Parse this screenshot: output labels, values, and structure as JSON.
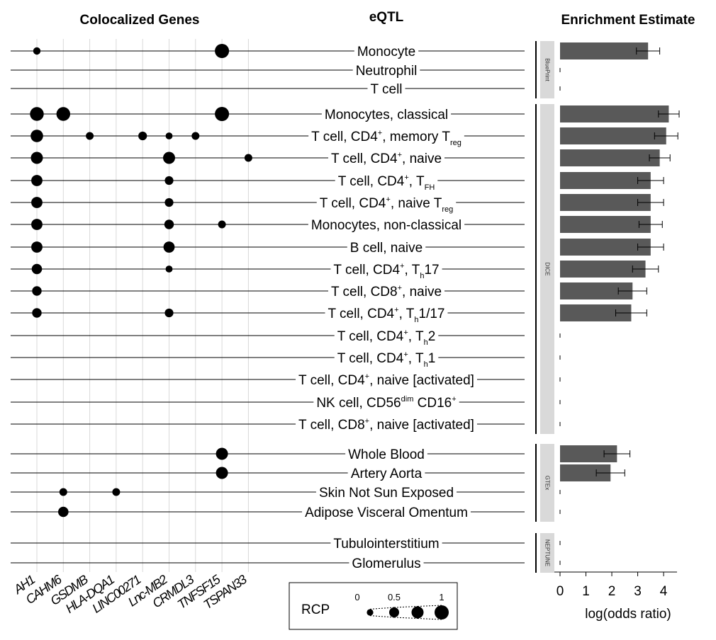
{
  "headers": {
    "genes": "Colocalized Genes",
    "eqtl": "eQTL",
    "enrichment": "Enrichment Estimate"
  },
  "genes": [
    "AH1",
    "CAHM6",
    "GSDMB",
    "HLA-DQA1",
    "LINC00271",
    "Lnc-MB2",
    "CRMDL3",
    "TNFSF15",
    "TSPAN33"
  ],
  "rows": [
    {
      "label": [
        [
          "Monocyte",
          ""
        ]
      ]
    },
    {
      "label": [
        [
          "Neutrophil",
          ""
        ]
      ]
    },
    {
      "label": [
        [
          "T cell",
          ""
        ]
      ]
    },
    {
      "label": [
        [
          "Monocytes, classical",
          ""
        ]
      ]
    },
    {
      "label": [
        [
          "T cell, CD4",
          ""
        ],
        [
          "+",
          "sup"
        ],
        [
          ", memory T",
          ""
        ],
        [
          "reg",
          "sub"
        ]
      ]
    },
    {
      "label": [
        [
          "T cell, CD4",
          ""
        ],
        [
          "+",
          "sup"
        ],
        [
          ", naive",
          ""
        ]
      ]
    },
    {
      "label": [
        [
          "T cell, CD4",
          ""
        ],
        [
          "+",
          "sup"
        ],
        [
          ", T",
          ""
        ],
        [
          "FH",
          "sub"
        ]
      ]
    },
    {
      "label": [
        [
          "T cell, CD4",
          ""
        ],
        [
          "+",
          "sup"
        ],
        [
          ", naive T",
          ""
        ],
        [
          "reg",
          "sub"
        ]
      ]
    },
    {
      "label": [
        [
          "Monocytes, non-classical",
          ""
        ]
      ]
    },
    {
      "label": [
        [
          "B cell, naive",
          ""
        ]
      ]
    },
    {
      "label": [
        [
          "T cell, CD4",
          ""
        ],
        [
          "+",
          "sup"
        ],
        [
          ", T",
          ""
        ],
        [
          "h",
          "sub"
        ],
        [
          "17",
          ""
        ]
      ]
    },
    {
      "label": [
        [
          "T cell, CD8",
          ""
        ],
        [
          "+",
          "sup"
        ],
        [
          ", naive",
          ""
        ]
      ]
    },
    {
      "label": [
        [
          "T cell, CD4",
          ""
        ],
        [
          "+",
          "sup"
        ],
        [
          ", T",
          ""
        ],
        [
          "h",
          "sub"
        ],
        [
          "1/17",
          ""
        ]
      ]
    },
    {
      "label": [
        [
          "T cell, CD4",
          ""
        ],
        [
          "+",
          "sup"
        ],
        [
          ", T",
          ""
        ],
        [
          "h",
          "sub"
        ],
        [
          "2",
          ""
        ]
      ]
    },
    {
      "label": [
        [
          "T cell, CD4",
          ""
        ],
        [
          "+",
          "sup"
        ],
        [
          ", T",
          ""
        ],
        [
          "h",
          "sub"
        ],
        [
          "1",
          ""
        ]
      ]
    },
    {
      "label": [
        [
          "T cell, CD4",
          ""
        ],
        [
          "+",
          "sup"
        ],
        [
          ", naive [activated]",
          ""
        ]
      ]
    },
    {
      "label": [
        [
          "NK cell, CD56",
          ""
        ],
        [
          "dim",
          "sup"
        ],
        [
          " CD16",
          ""
        ],
        [
          "+",
          "sup"
        ]
      ]
    },
    {
      "label": [
        [
          "T cell, CD8",
          ""
        ],
        [
          "+",
          "sup"
        ],
        [
          ", naive [activated]",
          ""
        ]
      ]
    },
    {
      "label": [
        [
          "Whole Blood",
          ""
        ]
      ]
    },
    {
      "label": [
        [
          "Artery Aorta",
          ""
        ]
      ]
    },
    {
      "label": [
        [
          "Skin Not Sun Exposed",
          ""
        ]
      ]
    },
    {
      "label": [
        [
          "Adipose Visceral Omentum",
          ""
        ]
      ]
    },
    {
      "label": [
        [
          "Tubulointerstitium",
          ""
        ]
      ]
    },
    {
      "label": [
        [
          "Glomerulus",
          ""
        ]
      ]
    }
  ],
  "groups": [
    {
      "name": "BluePrint",
      "rows": [
        0,
        2
      ]
    },
    {
      "name": "DICE",
      "rows": [
        3,
        17
      ]
    },
    {
      "name": "GTEx",
      "rows": [
        18,
        21
      ]
    },
    {
      "name": "NEPTUNE",
      "rows": [
        22,
        23
      ]
    }
  ],
  "chart_data": {
    "dot_matrix": {
      "type": "scatter",
      "title": "Colocalized Genes",
      "x": "genes",
      "size_variable": "RCP",
      "points": [
        {
          "row": 0,
          "gene": 0,
          "rcp": 0.2
        },
        {
          "row": 0,
          "gene": 7,
          "rcp": 1.0
        },
        {
          "row": 3,
          "gene": 0,
          "rcp": 0.95
        },
        {
          "row": 3,
          "gene": 1,
          "rcp": 0.95
        },
        {
          "row": 3,
          "gene": 7,
          "rcp": 1.0
        },
        {
          "row": 4,
          "gene": 0,
          "rcp": 0.8
        },
        {
          "row": 4,
          "gene": 2,
          "rcp": 0.25
        },
        {
          "row": 4,
          "gene": 4,
          "rcp": 0.35
        },
        {
          "row": 4,
          "gene": 5,
          "rcp": 0.15
        },
        {
          "row": 4,
          "gene": 6,
          "rcp": 0.25
        },
        {
          "row": 5,
          "gene": 0,
          "rcp": 0.75
        },
        {
          "row": 5,
          "gene": 5,
          "rcp": 0.75
        },
        {
          "row": 5,
          "gene": 8,
          "rcp": 0.25
        },
        {
          "row": 6,
          "gene": 0,
          "rcp": 0.65
        },
        {
          "row": 6,
          "gene": 5,
          "rcp": 0.35
        },
        {
          "row": 7,
          "gene": 0,
          "rcp": 0.65
        },
        {
          "row": 7,
          "gene": 5,
          "rcp": 0.35
        },
        {
          "row": 8,
          "gene": 0,
          "rcp": 0.65
        },
        {
          "row": 8,
          "gene": 5,
          "rcp": 0.45
        },
        {
          "row": 8,
          "gene": 7,
          "rcp": 0.25
        },
        {
          "row": 9,
          "gene": 0,
          "rcp": 0.65
        },
        {
          "row": 9,
          "gene": 5,
          "rcp": 0.65
        },
        {
          "row": 10,
          "gene": 0,
          "rcp": 0.55
        },
        {
          "row": 10,
          "gene": 5,
          "rcp": 0.15
        },
        {
          "row": 11,
          "gene": 0,
          "rcp": 0.45
        },
        {
          "row": 12,
          "gene": 0,
          "rcp": 0.45
        },
        {
          "row": 12,
          "gene": 5,
          "rcp": 0.35
        },
        {
          "row": 18,
          "gene": 7,
          "rcp": 0.75
        },
        {
          "row": 19,
          "gene": 7,
          "rcp": 0.75
        },
        {
          "row": 20,
          "gene": 1,
          "rcp": 0.25
        },
        {
          "row": 20,
          "gene": 3,
          "rcp": 0.25
        },
        {
          "row": 21,
          "gene": 1,
          "rcp": 0.55
        }
      ]
    },
    "enrichment": {
      "type": "bar",
      "orientation": "horizontal",
      "title": "Enrichment Estimate",
      "xlabel": "log(odds ratio)",
      "xlim": [
        0,
        4.6
      ],
      "xticks": [
        0,
        1,
        2,
        3,
        4
      ],
      "values": [
        3.4,
        null,
        null,
        4.2,
        4.1,
        3.85,
        3.5,
        3.5,
        3.5,
        3.5,
        3.3,
        2.8,
        2.75,
        null,
        null,
        null,
        null,
        null,
        2.2,
        1.95,
        null,
        null,
        null,
        null
      ],
      "errors": [
        0.45,
        null,
        null,
        0.4,
        0.45,
        0.4,
        0.5,
        0.5,
        0.45,
        0.5,
        0.5,
        0.55,
        0.6,
        null,
        null,
        null,
        null,
        null,
        0.5,
        0.55,
        null,
        null,
        null,
        null
      ],
      "bar_color": "#595959"
    },
    "legend": {
      "title": "RCP",
      "levels": [
        {
          "label": "0",
          "rcp": 0.1
        },
        {
          "label": "0.5",
          "rcp": 0.5
        },
        {
          "label": "",
          "rcp": 0.75
        },
        {
          "label": "1",
          "rcp": 1.0
        }
      ]
    }
  }
}
